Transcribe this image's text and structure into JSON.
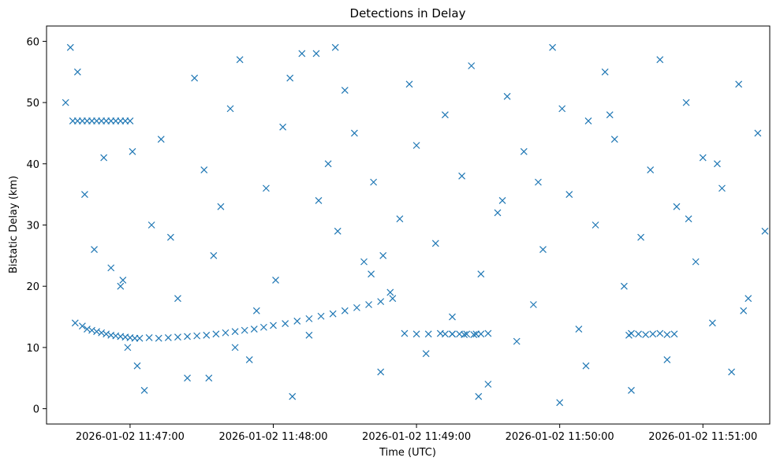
{
  "chart_data": {
    "type": "scatter",
    "title": "Detections in Delay",
    "xlabel": "Time (UTC)",
    "ylabel": "Bistatic Delay (km)",
    "x_ticks": [
      "2026-01-02 11:47:00",
      "2026-01-02 11:48:00",
      "2026-01-02 11:49:00",
      "2026-01-02 11:50:00",
      "2026-01-02 11:51:00"
    ],
    "y_ticks": [
      0,
      10,
      20,
      30,
      40,
      50,
      60
    ],
    "xlim": [
      "2026-01-02 11:46:25",
      "2026-01-02 11:51:28"
    ],
    "ylim": [
      -2.5,
      62.5
    ],
    "marker": "x",
    "color": "#1f77b4",
    "grid": false,
    "series_x_unit": "time (HH:MM:SS on 2026-01-02)",
    "x": [
      "11:46:37",
      "11:46:40",
      "11:46:42",
      "11:46:44",
      "11:46:46",
      "11:46:48",
      "11:46:50",
      "11:46:52",
      "11:46:54",
      "11:46:56",
      "11:46:58",
      "11:47:00",
      "11:47:02",
      "11:47:04",
      "11:47:08",
      "11:47:12",
      "11:47:16",
      "11:47:20",
      "11:47:24",
      "11:47:28",
      "11:47:32",
      "11:47:36",
      "11:47:40",
      "11:47:44",
      "11:47:48",
      "11:47:52",
      "11:47:56",
      "11:48:00",
      "11:48:05",
      "11:48:10",
      "11:48:15",
      "11:48:20",
      "11:48:25",
      "11:48:30",
      "11:48:35",
      "11:48:40",
      "11:48:45",
      "11:48:50",
      "11:48:55",
      "11:49:00",
      "11:49:05",
      "11:49:10",
      "11:49:15",
      "11:49:20",
      "11:49:25",
      "11:49:30",
      "11:46:36",
      "11:46:38",
      "11:46:40",
      "11:46:42",
      "11:46:44",
      "11:46:46",
      "11:46:48",
      "11:46:50",
      "11:46:52",
      "11:46:54",
      "11:46:56",
      "11:46:58",
      "11:47:00",
      "11:49:12",
      "11:49:15",
      "11:49:18",
      "11:49:21",
      "11:49:24",
      "11:49:27",
      "11:50:30",
      "11:50:33",
      "11:50:36",
      "11:50:39",
      "11:50:42",
      "11:50:45",
      "11:50:48"
    ],
    "y": [
      14,
      13.5,
      13,
      12.8,
      12.6,
      12.4,
      12.2,
      12,
      11.9,
      11.8,
      11.7,
      11.6,
      11.5,
      11.5,
      11.6,
      11.5,
      11.6,
      11.7,
      11.8,
      11.9,
      12,
      12.2,
      12.4,
      12.6,
      12.8,
      13,
      13.3,
      13.6,
      13.9,
      14.3,
      14.7,
      15.1,
      15.5,
      16,
      16.5,
      17,
      17.5,
      18,
      12.3,
      12.2,
      12.2,
      12.3,
      12.2,
      12.1,
      12.2,
      12.3,
      47,
      47,
      47,
      47,
      47,
      47,
      47,
      47,
      47,
      47,
      47,
      47,
      47,
      12.2,
      12.2,
      12.2,
      12.2,
      12.1,
      12.2,
      12.3,
      12.2,
      12.1,
      12.2,
      12.3,
      12.1,
      12.2
    ],
    "noise_y": [
      50,
      59,
      55,
      35,
      26,
      41,
      23,
      20,
      10,
      7,
      3,
      30,
      44,
      28,
      18,
      5,
      54,
      39,
      25,
      33,
      49,
      57,
      8,
      16,
      36,
      21,
      46,
      2,
      58,
      12,
      34,
      40,
      29,
      52,
      45,
      24,
      37,
      6,
      19,
      31,
      53,
      43,
      9,
      27,
      48,
      15,
      38,
      56,
      22,
      4,
      32,
      51,
      11,
      42,
      17,
      26,
      59,
      1,
      35,
      13,
      47,
      30,
      55,
      44,
      20,
      3,
      28,
      39,
      57,
      8,
      33,
      50,
      24,
      41,
      14,
      36,
      6,
      53,
      18,
      45,
      29,
      10,
      58,
      22,
      2,
      37,
      48,
      31,
      16,
      42,
      5,
      54,
      25,
      34,
      49,
      12,
      40,
      21,
      59,
      7
    ],
    "noise_x": [
      "11:46:33",
      "11:46:35",
      "11:46:38",
      "11:46:41",
      "11:46:45",
      "11:46:49",
      "11:46:52",
      "11:46:56",
      "11:46:59",
      "11:47:03",
      "11:47:06",
      "11:47:09",
      "11:47:13",
      "11:47:17",
      "11:47:20",
      "11:47:24",
      "11:47:27",
      "11:47:31",
      "11:47:35",
      "11:47:38",
      "11:47:42",
      "11:47:46",
      "11:47:50",
      "11:47:53",
      "11:47:57",
      "11:48:01",
      "11:48:04",
      "11:48:08",
      "11:48:12",
      "11:48:15",
      "11:48:19",
      "11:48:23",
      "11:48:27",
      "11:48:30",
      "11:48:34",
      "11:48:38",
      "11:48:42",
      "11:48:45",
      "11:48:49",
      "11:48:53",
      "11:48:57",
      "11:49:00",
      "11:49:04",
      "11:49:08",
      "11:49:12",
      "11:49:15",
      "11:49:19",
      "11:49:23",
      "11:49:27",
      "11:49:30",
      "11:49:34",
      "11:49:38",
      "11:49:42",
      "11:49:45",
      "11:49:49",
      "11:49:53",
      "11:49:57",
      "11:50:00",
      "11:50:04",
      "11:50:08",
      "11:50:12",
      "11:50:15",
      "11:50:19",
      "11:50:23",
      "11:50:27",
      "11:50:30",
      "11:50:34",
      "11:50:38",
      "11:50:42",
      "11:50:45",
      "11:50:49",
      "11:50:53",
      "11:50:57",
      "11:51:00",
      "11:51:04",
      "11:51:08",
      "11:51:12",
      "11:51:15",
      "11:51:19",
      "11:51:23",
      "11:51:26",
      "11:47:44",
      "11:48:18",
      "11:48:41",
      "11:49:26",
      "11:49:51",
      "11:50:21",
      "11:50:54",
      "11:51:17",
      "11:47:01",
      "11:47:33",
      "11:48:07",
      "11:48:46",
      "11:49:36",
      "11:50:01",
      "11:50:29",
      "11:51:06",
      "11:46:57",
      "11:48:26",
      "11:50:11"
    ]
  }
}
